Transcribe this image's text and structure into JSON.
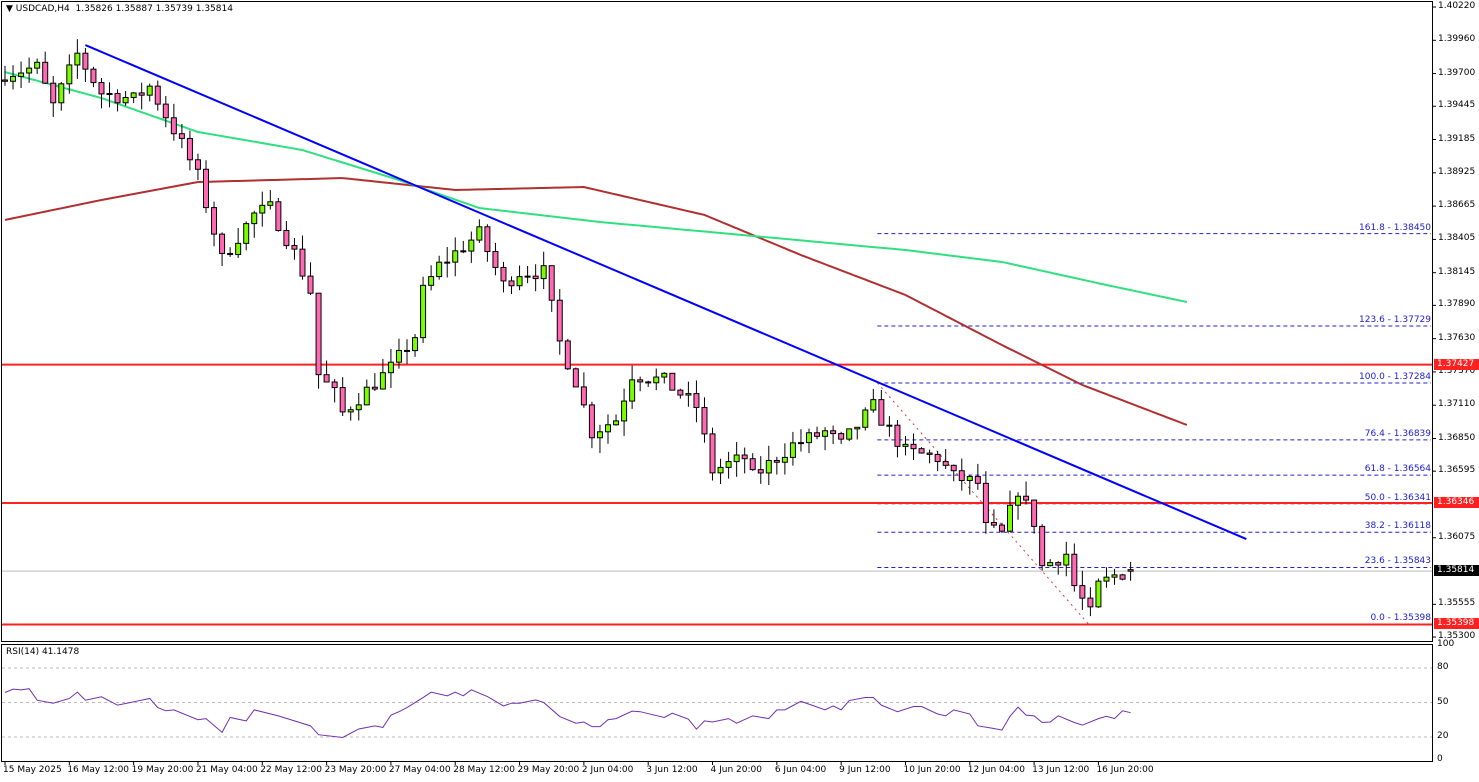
{
  "header": {
    "symbol": "USDCAD,H4",
    "ohlc": "1.35826 1.35887 1.35739 1.35814"
  },
  "colors": {
    "bull": "#7cfc00",
    "bear": "#ff69b4",
    "trendline": "#0000ff",
    "support_resistance": "#ff2020",
    "fib": "#2020d0",
    "ma_slow": "#b03030",
    "ma_fast": "#30e080",
    "rsi": "#7030b0",
    "current_price": "#000000"
  },
  "price_axis": [
    "1.40220",
    "1.39960",
    "1.39700",
    "1.39445",
    "1.39185",
    "1.38925",
    "1.38665",
    "1.38405",
    "1.38145",
    "1.37890",
    "1.37630",
    "1.37370",
    "1.37110",
    "1.36850",
    "1.36595",
    "1.36075",
    "1.35555",
    "1.35300"
  ],
  "price_labels": [
    {
      "text": "1.37427",
      "value": 1.37427,
      "color": "#ff2020"
    },
    {
      "text": "1.36346",
      "value": 1.36346,
      "color": "#ff2020"
    },
    {
      "text": "1.35814",
      "value": 1.35814,
      "color": "#000000"
    },
    {
      "text": "1.35398",
      "value": 1.35398,
      "color": "#ff2020"
    }
  ],
  "horizontal_lines": [
    1.37427,
    1.36346,
    1.35398
  ],
  "current_price": 1.35814,
  "fib_levels": [
    {
      "text": "161.8 - 1.38450",
      "value": 1.3845
    },
    {
      "text": "123.6 - 1.37729",
      "value": 1.37729
    },
    {
      "text": "100.0 - 1.37284",
      "value": 1.37284
    },
    {
      "text": "76.4 - 1.36839",
      "value": 1.36839
    },
    {
      "text": "61.8 - 1.36564",
      "value": 1.36564
    },
    {
      "text": "50.0 - 1.36341",
      "value": 1.36341
    },
    {
      "text": "38.2 - 1.36118",
      "value": 1.36118
    },
    {
      "text": "23.6 - 1.35843",
      "value": 1.35843
    },
    {
      "text": "0.0 - 1.35398",
      "value": 1.35398
    }
  ],
  "fib_anchor": {
    "high_bar": 108.5,
    "high": 1.37284,
    "low_bar": 134.8,
    "low": 1.35398
  },
  "trendline": {
    "start_bar": 10,
    "start": 1.39923,
    "end_bar": 154.4,
    "end": 1.36065
  },
  "time_axis": [
    "15 May 2025",
    "16 May 12:00",
    "19 May 20:00",
    "21 May 04:00",
    "22 May 12:00",
    "23 May 20:00",
    "27 May 04:00",
    "28 May 12:00",
    "29 May 20:00",
    "2 Jun 04:00",
    "3 Jun 12:00",
    "4 Jun 20:00",
    "6 Jun 04:00",
    "9 Jun 12:00",
    "10 Jun 20:00",
    "12 Jun 04:00",
    "13 Jun 12:00",
    "16 Jun 20:00"
  ],
  "chart_data": {
    "type": "candlestick",
    "symbol": "USDCAD",
    "timeframe": "H4",
    "ylim": [
      1.353,
      1.4022
    ],
    "bars": 141,
    "last_candle": {
      "open": 1.35826,
      "high": 1.35887,
      "low": 1.35739,
      "close": 1.35814
    },
    "close_path": [
      [
        0,
        1.397
      ],
      [
        4,
        1.3975
      ],
      [
        6,
        1.3945
      ],
      [
        9,
        1.3985
      ],
      [
        12,
        1.3955
      ],
      [
        16,
        1.395
      ],
      [
        18,
        1.396
      ],
      [
        22,
        1.3915
      ],
      [
        24,
        1.389
      ],
      [
        27,
        1.3825
      ],
      [
        31,
        1.386
      ],
      [
        33,
        1.3865
      ],
      [
        36,
        1.383
      ],
      [
        38,
        1.38
      ],
      [
        39,
        1.3735
      ],
      [
        41,
        1.372
      ],
      [
        42,
        1.3705
      ],
      [
        48,
        1.374
      ],
      [
        51,
        1.3765
      ],
      [
        52,
        1.38
      ],
      [
        54,
        1.382
      ],
      [
        59,
        1.3845
      ],
      [
        62,
        1.3805
      ],
      [
        64,
        1.3815
      ],
      [
        67,
        1.3815
      ],
      [
        69,
        1.376
      ],
      [
        71,
        1.373
      ],
      [
        73,
        1.369
      ],
      [
        76,
        1.37
      ],
      [
        78,
        1.3735
      ],
      [
        82,
        1.373
      ],
      [
        86,
        1.371
      ],
      [
        88,
        1.366
      ],
      [
        92,
        1.367
      ],
      [
        93,
        1.3655
      ],
      [
        98,
        1.368
      ],
      [
        102,
        1.369
      ],
      [
        104,
        1.368
      ],
      [
        108,
        1.371
      ],
      [
        109,
        1.37
      ],
      [
        112,
        1.3675
      ],
      [
        116,
        1.367
      ],
      [
        118,
        1.3655
      ],
      [
        121,
        1.365
      ],
      [
        122,
        1.3615
      ],
      [
        124,
        1.361
      ],
      [
        126,
        1.3645
      ],
      [
        128,
        1.362
      ],
      [
        129,
        1.3585
      ],
      [
        132,
        1.3595
      ],
      [
        133,
        1.357
      ],
      [
        135,
        1.3548
      ],
      [
        136,
        1.357
      ],
      [
        138,
        1.3578
      ],
      [
        140,
        1.35814
      ]
    ],
    "ma_slow": [
      [
        0,
        1.38557
      ],
      [
        12,
        1.38713
      ],
      [
        24,
        1.38853
      ],
      [
        42,
        1.38884
      ],
      [
        56,
        1.38791
      ],
      [
        72,
        1.38814
      ],
      [
        87,
        1.38596
      ],
      [
        99,
        1.38283
      ],
      [
        112,
        1.37971
      ],
      [
        124,
        1.3758
      ],
      [
        134,
        1.37268
      ],
      [
        147,
        1.36956
      ]
    ],
    "ma_fast": [
      [
        0,
        1.39712
      ],
      [
        12,
        1.39509
      ],
      [
        24,
        1.39244
      ],
      [
        37,
        1.39103
      ],
      [
        49,
        1.38869
      ],
      [
        59,
        1.3865
      ],
      [
        74,
        1.38541
      ],
      [
        93,
        1.38432
      ],
      [
        112,
        1.38322
      ],
      [
        124,
        1.38229
      ],
      [
        137,
        1.38049
      ],
      [
        147,
        1.37916
      ]
    ],
    "rsi": {
      "label": "RSI(14) 41.1478",
      "period": 14,
      "last": 41.1478,
      "levels": [
        80,
        50,
        20
      ],
      "axis": [
        "100",
        "80",
        "50",
        "20",
        "0"
      ],
      "values": [
        [
          0,
          58.7
        ],
        [
          1,
          61.6
        ],
        [
          2,
          61
        ],
        [
          3,
          62
        ],
        [
          4,
          52
        ],
        [
          6,
          49.4
        ],
        [
          8,
          53.5
        ],
        [
          9,
          59
        ],
        [
          10,
          52
        ],
        [
          12,
          55
        ],
        [
          14,
          47.7
        ],
        [
          16,
          50.6
        ],
        [
          18,
          53.5
        ],
        [
          19,
          45.6
        ],
        [
          20,
          42.8
        ],
        [
          21,
          43.6
        ],
        [
          24,
          35
        ],
        [
          25,
          36
        ],
        [
          27,
          24
        ],
        [
          28,
          37
        ],
        [
          30,
          34
        ],
        [
          31,
          43.6
        ],
        [
          34,
          38.4
        ],
        [
          38,
          29.7
        ],
        [
          39,
          22
        ],
        [
          42,
          19.6
        ],
        [
          44,
          27
        ],
        [
          46,
          29.7
        ],
        [
          47,
          28.3
        ],
        [
          48,
          39
        ],
        [
          49,
          42
        ],
        [
          50,
          45.6
        ],
        [
          52,
          54.3
        ],
        [
          53,
          59
        ],
        [
          55,
          55.8
        ],
        [
          56,
          59
        ],
        [
          57,
          55.8
        ],
        [
          58,
          61
        ],
        [
          60,
          55.2
        ],
        [
          62,
          47
        ],
        [
          63,
          49.4
        ],
        [
          64,
          49.4
        ],
        [
          66,
          52.3
        ],
        [
          67,
          50
        ],
        [
          69,
          37.8
        ],
        [
          71,
          32
        ],
        [
          72,
          33
        ],
        [
          73,
          29
        ],
        [
          74,
          29
        ],
        [
          75,
          35
        ],
        [
          76,
          36
        ],
        [
          78,
          42.5
        ],
        [
          79,
          42
        ],
        [
          82,
          37
        ],
        [
          83,
          40.7
        ],
        [
          85,
          35.5
        ],
        [
          86,
          26.8
        ],
        [
          87,
          34
        ],
        [
          88,
          33
        ],
        [
          90,
          36
        ],
        [
          91,
          32
        ],
        [
          93,
          38.4
        ],
        [
          95,
          36
        ],
        [
          96,
          43.6
        ],
        [
          97,
          43.6
        ],
        [
          99,
          51
        ],
        [
          102,
          43.6
        ],
        [
          103,
          47
        ],
        [
          104,
          43.6
        ],
        [
          105,
          51.7
        ],
        [
          107,
          54.3
        ],
        [
          108,
          54.3
        ],
        [
          109,
          47.7
        ],
        [
          111,
          42
        ],
        [
          113,
          46.5
        ],
        [
          114,
          46.5
        ],
        [
          116,
          40
        ],
        [
          117,
          38.4
        ],
        [
          118,
          43.6
        ],
        [
          120,
          40
        ],
        [
          121,
          29.7
        ],
        [
          123,
          27.4
        ],
        [
          124,
          26
        ],
        [
          125,
          38
        ],
        [
          126,
          46
        ],
        [
          127,
          39
        ],
        [
          128,
          38.4
        ],
        [
          129,
          32.6
        ],
        [
          130,
          33
        ],
        [
          131,
          38.4
        ],
        [
          133,
          32.6
        ],
        [
          134,
          30.3
        ],
        [
          136,
          36
        ],
        [
          137,
          38
        ],
        [
          138,
          36
        ],
        [
          139,
          42.8
        ],
        [
          140,
          41.1478
        ]
      ]
    }
  }
}
